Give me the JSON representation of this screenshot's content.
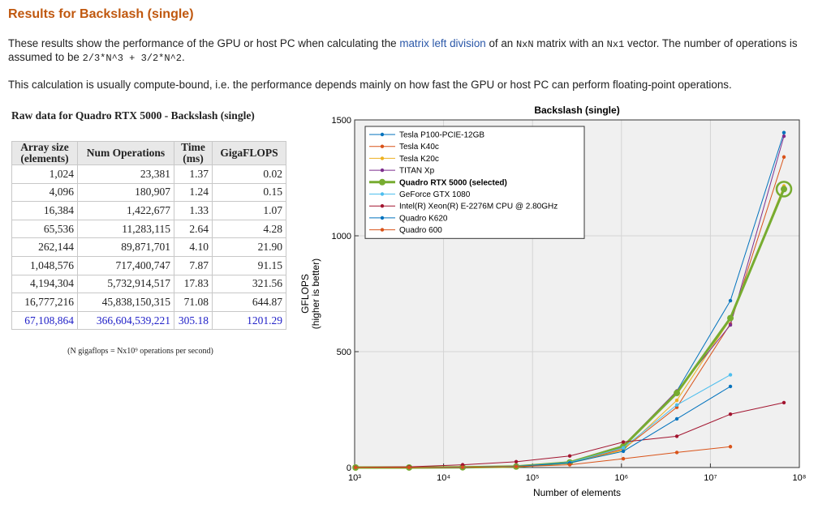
{
  "header": {
    "title": "Results for Backslash (single)"
  },
  "intro": {
    "p1": [
      "These results show the performance of the GPU or host PC when calculating the ",
      "matrix left division",
      " of an ",
      "NxN",
      " matrix with an ",
      "Nx1",
      " vector. The number of operations is assumed to be ",
      "2/3*N^3 + 3/2*N^2",
      "."
    ],
    "p2": "This calculation is usually compute-bound, i.e. the performance depends mainly on how fast the GPU or host PC can perform floating-point operations."
  },
  "table": {
    "caption": "Raw data for Quadro RTX 5000 - Backslash (single)",
    "columns": [
      "Array size (elements)",
      "Num Operations",
      "Time (ms)",
      "GigaFLOPS"
    ],
    "rows": [
      [
        "1,024",
        "23,381",
        "1.37",
        "0.02"
      ],
      [
        "4,096",
        "180,907",
        "1.24",
        "0.15"
      ],
      [
        "16,384",
        "1,422,677",
        "1.33",
        "1.07"
      ],
      [
        "65,536",
        "11,283,115",
        "2.64",
        "4.28"
      ],
      [
        "262,144",
        "89,871,701",
        "4.10",
        "21.90"
      ],
      [
        "1,048,576",
        "717,400,747",
        "7.87",
        "91.15"
      ],
      [
        "4,194,304",
        "5,732,914,517",
        "17.83",
        "321.56"
      ],
      [
        "16,777,216",
        "45,838,150,315",
        "71.08",
        "644.87"
      ],
      [
        "67,108,864",
        "366,604,539,221",
        "305.18",
        "1201.29"
      ]
    ],
    "footnote": "(N gigaflops = Nx10⁹ operations per second)"
  },
  "chart_data": {
    "type": "line",
    "title": "Backslash (single)",
    "xlabel": "Number of elements",
    "ylabel": [
      "GFLOPS",
      "(higher is better)"
    ],
    "x": [
      1024,
      4096,
      16384,
      65536,
      262144,
      1048576,
      4194304,
      16777216,
      67108864
    ],
    "xlog": true,
    "xlim": [
      1000,
      100000000
    ],
    "xticks": [
      {
        "value": 1000,
        "label": "10³"
      },
      {
        "value": 10000,
        "label": "10⁴"
      },
      {
        "value": 100000,
        "label": "10⁵"
      },
      {
        "value": 1000000,
        "label": "10⁶"
      },
      {
        "value": 10000000,
        "label": "10⁷"
      },
      {
        "value": 100000000,
        "label": "10⁸"
      }
    ],
    "ylim": [
      0,
      1500
    ],
    "yticks": [
      0,
      500,
      1000,
      1500
    ],
    "grid": true,
    "legend": "upper left",
    "series": [
      {
        "name": "Tesla P100-PCIE-12GB",
        "color": "#0072bd",
        "values": [
          0.02,
          0.2,
          1.2,
          5,
          25,
          90,
          330,
          720,
          1445
        ]
      },
      {
        "name": "Tesla K40c",
        "color": "#d95319",
        "values": [
          0.02,
          0.15,
          1,
          5,
          20,
          80,
          260,
          620,
          1340
        ]
      },
      {
        "name": "Tesla K20c",
        "color": "#edb120",
        "values": [
          0.02,
          0.15,
          1,
          4,
          18,
          75,
          290,
          640,
          1215
        ]
      },
      {
        "name": "TITAN Xp",
        "color": "#7e2f8e",
        "values": [
          0.02,
          0.2,
          1.2,
          5,
          25,
          95,
          330,
          615,
          1430
        ]
      },
      {
        "name": "Quadro RTX 5000 (selected)",
        "color": "#77ac30",
        "linewidth": 3,
        "selected": true,
        "values": [
          0.02,
          0.15,
          1.07,
          4.28,
          21.9,
          91.15,
          321.56,
          644.87,
          1201.29
        ]
      },
      {
        "name": "GeForce GTX 1080",
        "color": "#4dbeee",
        "values": [
          0.02,
          0.15,
          1,
          5,
          22,
          85,
          270,
          400,
          null
        ]
      },
      {
        "name": "Intel(R) Xeon(R) E-2276M  CPU @ 2.80GHz",
        "color": "#a2142f",
        "values": [
          1,
          3,
          12,
          25,
          50,
          110,
          135,
          230,
          280
        ]
      },
      {
        "name": "Quadro K620",
        "color": "#0072bd",
        "values": [
          0.02,
          0.15,
          1,
          5,
          20,
          70,
          210,
          350,
          null
        ]
      },
      {
        "name": "Quadro 600",
        "color": "#d95319",
        "values": [
          0.02,
          0.15,
          1,
          4,
          12,
          38,
          65,
          90,
          null
        ]
      }
    ]
  }
}
